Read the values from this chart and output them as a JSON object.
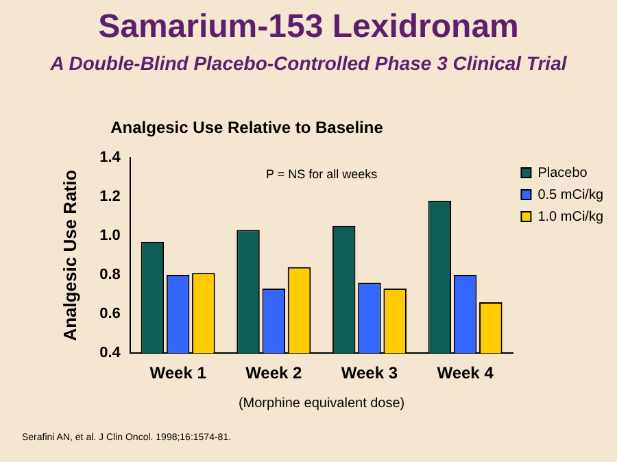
{
  "chart_data": {
    "type": "bar",
    "title": "Samarium-153 Lexidronam",
    "subtitle": "A Double-Blind Placebo-Controlled Phase 3 Clinical Trial",
    "annotations": [
      "Analgesic Use Relative to Baseline",
      "P = NS for all weeks",
      "Serafini AN, et al. J Clin Oncol. 1998;16:1574-81."
    ],
    "categories": [
      "Week 1",
      "Week 2",
      "Week 3",
      "Week 4"
    ],
    "series": [
      {
        "name": "Placebo",
        "color": "#0e5e58",
        "values": [
          0.97,
          1.03,
          1.05,
          1.18
        ]
      },
      {
        "name": "0.5 mCi/kg",
        "color": "#3366ff",
        "values": [
          0.8,
          0.73,
          0.76,
          0.8
        ]
      },
      {
        "name": "1.0 mCi/kg",
        "color": "#ffcc00",
        "values": [
          0.81,
          0.84,
          0.73,
          0.66
        ]
      }
    ],
    "xlabel": "(Morphine equivalent dose)",
    "ylabel": "Analgesic Use Ratio",
    "ylim": [
      0.4,
      1.4
    ],
    "yticks": [
      {
        "value": 0.4,
        "label": "0.4"
      },
      {
        "value": 0.6,
        "label": "0.6"
      },
      {
        "value": 0.8,
        "label": "0.8"
      },
      {
        "value": 1,
        "label": "1.0"
      },
      {
        "value": 1.2,
        "label": "1.2"
      },
      {
        "value": 1.4,
        "label": "1.4"
      }
    ],
    "grid": false,
    "legend": "top right"
  }
}
